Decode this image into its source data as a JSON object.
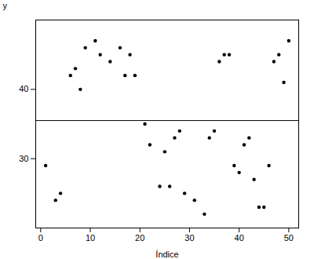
{
  "chart_data": {
    "type": "scatter",
    "x": [
      1,
      3,
      4,
      6,
      7,
      8,
      9,
      11,
      12,
      14,
      16,
      17,
      18,
      19,
      21,
      22,
      24,
      25,
      26,
      27,
      28,
      29,
      31,
      33,
      34,
      35,
      36,
      37,
      38,
      39,
      40,
      41,
      42,
      43,
      44,
      45,
      46,
      47,
      48,
      49,
      50
    ],
    "values": [
      29,
      24,
      25,
      42,
      43,
      40,
      46,
      47,
      45,
      44,
      46,
      42,
      45,
      42,
      35,
      32,
      26,
      31,
      26,
      33,
      34,
      25,
      24,
      22,
      33,
      34,
      44,
      45,
      45,
      29,
      28,
      32,
      33,
      27,
      23,
      23,
      29,
      44,
      45,
      41,
      47
    ],
    "color": "#000000",
    "mean_line": {
      "value": 35.5,
      "color": "#000000"
    },
    "xlabel": "Índice",
    "ylabel": "y",
    "xlim": [
      -1,
      52
    ],
    "ylim": [
      20,
      50
    ],
    "xticks": [
      0,
      10,
      20,
      30,
      40,
      50
    ],
    "yticks": [
      30,
      40
    ],
    "grid": false
  }
}
